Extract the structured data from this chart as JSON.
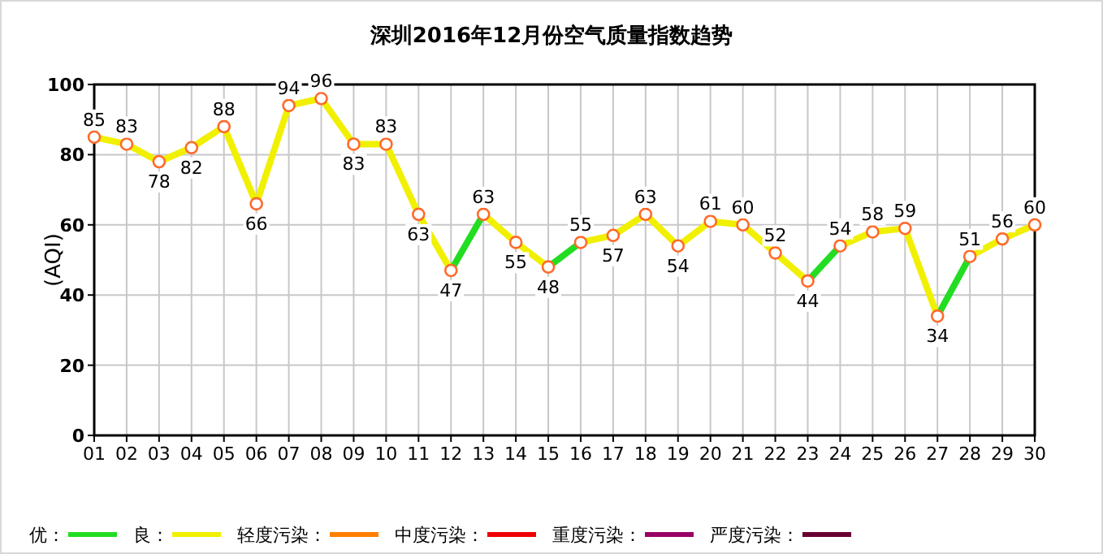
{
  "chart_data": {
    "type": "line",
    "title": "深圳2016年12月份空气质量指数趋势",
    "ylabel": "(AQI)",
    "categories": [
      "01",
      "02",
      "03",
      "04",
      "05",
      "06",
      "07",
      "08",
      "09",
      "10",
      "11",
      "12",
      "13",
      "14",
      "15",
      "16",
      "17",
      "18",
      "19",
      "20",
      "21",
      "22",
      "23",
      "24",
      "25",
      "26",
      "27",
      "28",
      "29",
      "30"
    ],
    "series": [
      {
        "name": "优：",
        "color": "#22dd22",
        "values": [
          null,
          null,
          null,
          null,
          null,
          null,
          null,
          null,
          null,
          null,
          null,
          47,
          63,
          null,
          48,
          55,
          null,
          null,
          null,
          null,
          null,
          null,
          44,
          54,
          null,
          null,
          34,
          51,
          null,
          null
        ]
      },
      {
        "name": "良：",
        "color": "#f0f000",
        "values": [
          85,
          83,
          78,
          82,
          88,
          66,
          94,
          96,
          83,
          83,
          63,
          47,
          63,
          55,
          48,
          55,
          57,
          63,
          54,
          61,
          60,
          52,
          44,
          54,
          58,
          59,
          34,
          51,
          56,
          60
        ],
        "value_labels": [
          "85",
          "83",
          "78",
          "82",
          "88",
          "66",
          "94",
          "96",
          "83",
          "83",
          "63",
          "47",
          "63",
          "55",
          "48",
          "55",
          "57",
          "63",
          "54",
          "61",
          "60",
          "52",
          "44",
          "54",
          "58",
          "59",
          "34",
          "51",
          "56",
          "60"
        ]
      },
      {
        "name": "轻度污染：",
        "color": "#ff7f00",
        "values": [
          null,
          null,
          null,
          null,
          null,
          null,
          null,
          null,
          null,
          null,
          null,
          null,
          null,
          null,
          null,
          null,
          null,
          null,
          null,
          null,
          null,
          null,
          null,
          null,
          null,
          null,
          null,
          null,
          null,
          null
        ]
      },
      {
        "name": "中度污染：",
        "color": "#ee0000",
        "values": [
          null,
          null,
          null,
          null,
          null,
          null,
          null,
          null,
          null,
          null,
          null,
          null,
          null,
          null,
          null,
          null,
          null,
          null,
          null,
          null,
          null,
          null,
          null,
          null,
          null,
          null,
          null,
          null,
          null,
          null
        ]
      },
      {
        "name": "重度污染：",
        "color": "#990066",
        "values": [
          null,
          null,
          null,
          null,
          null,
          null,
          null,
          null,
          null,
          null,
          null,
          null,
          null,
          null,
          null,
          null,
          null,
          null,
          null,
          null,
          null,
          null,
          null,
          null,
          null,
          null,
          null,
          null,
          null,
          null
        ]
      },
      {
        "name": "严度污染：",
        "color": "#660033",
        "values": [
          null,
          null,
          null,
          null,
          null,
          null,
          null,
          null,
          null,
          null,
          null,
          null,
          null,
          null,
          null,
          null,
          null,
          null,
          null,
          null,
          null,
          null,
          null,
          null,
          null,
          null,
          null,
          null,
          null,
          null
        ]
      }
    ],
    "ylim": [
      0,
      100
    ],
    "yticks": [
      0,
      20,
      40,
      60,
      80,
      100
    ],
    "grid": true,
    "legend": "bottom",
    "marker": "circle"
  }
}
